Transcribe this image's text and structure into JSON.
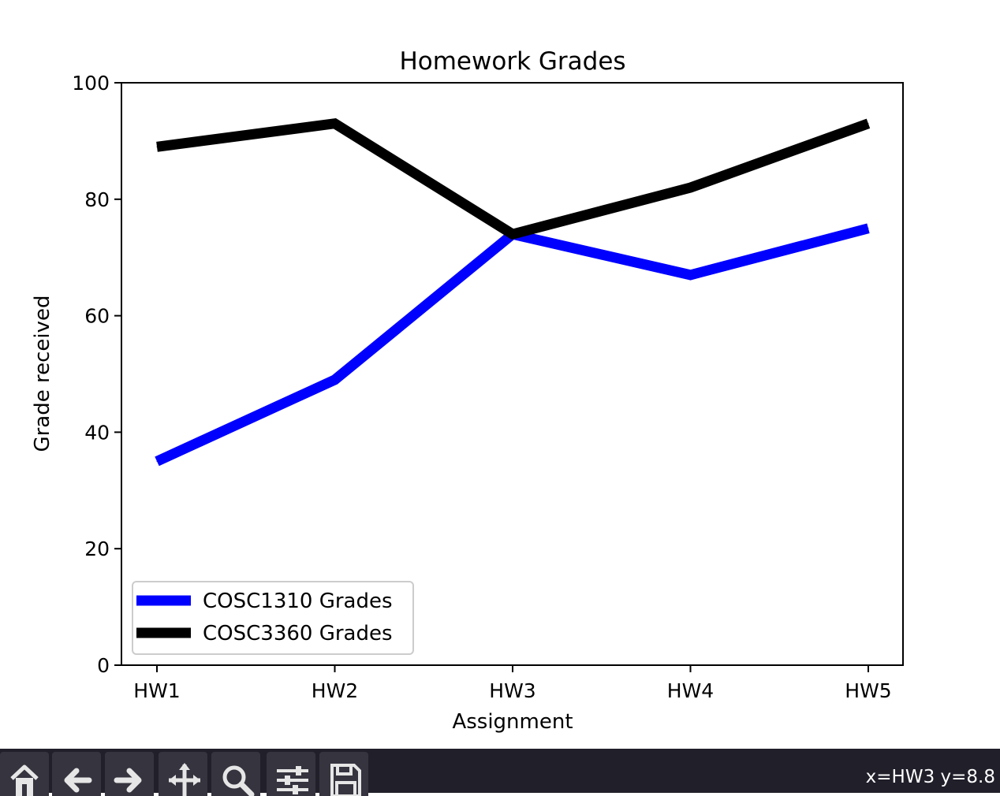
{
  "chart_data": {
    "type": "line",
    "title": "Homework Grades",
    "xlabel": "Assignment",
    "ylabel": "Grade received",
    "categories": [
      "HW1",
      "HW2",
      "HW3",
      "HW4",
      "HW5"
    ],
    "ylim": [
      0,
      100
    ],
    "yticks": [
      0,
      20,
      40,
      60,
      80,
      100
    ],
    "ytick_labels": [
      "0",
      "20",
      "40",
      "60",
      "80",
      "100"
    ],
    "grid": false,
    "legend_position": "lower-left",
    "series": [
      {
        "name": "COSC1310 Grades",
        "color": "#0000ff",
        "values": [
          35,
          49,
          74,
          67,
          75
        ]
      },
      {
        "name": "COSC3360 Grades",
        "color": "#000000",
        "values": [
          89,
          93,
          74,
          82,
          93
        ]
      }
    ]
  },
  "toolbar": {
    "buttons": [
      {
        "icon": "home-icon",
        "name": "home-button"
      },
      {
        "icon": "back-arrow-icon",
        "name": "back-button"
      },
      {
        "icon": "forward-arrow-icon",
        "name": "forward-button"
      },
      {
        "icon": "pan-arrows-icon",
        "name": "pan-button"
      },
      {
        "icon": "zoom-magnifier-icon",
        "name": "zoom-button"
      },
      {
        "icon": "sliders-icon",
        "name": "configure-subplots-button"
      },
      {
        "icon": "save-disk-icon",
        "name": "save-button"
      }
    ],
    "coords_text": "x=HW3 y=8.8",
    "background_color": "#201f2a",
    "button_color": "#35343f"
  }
}
